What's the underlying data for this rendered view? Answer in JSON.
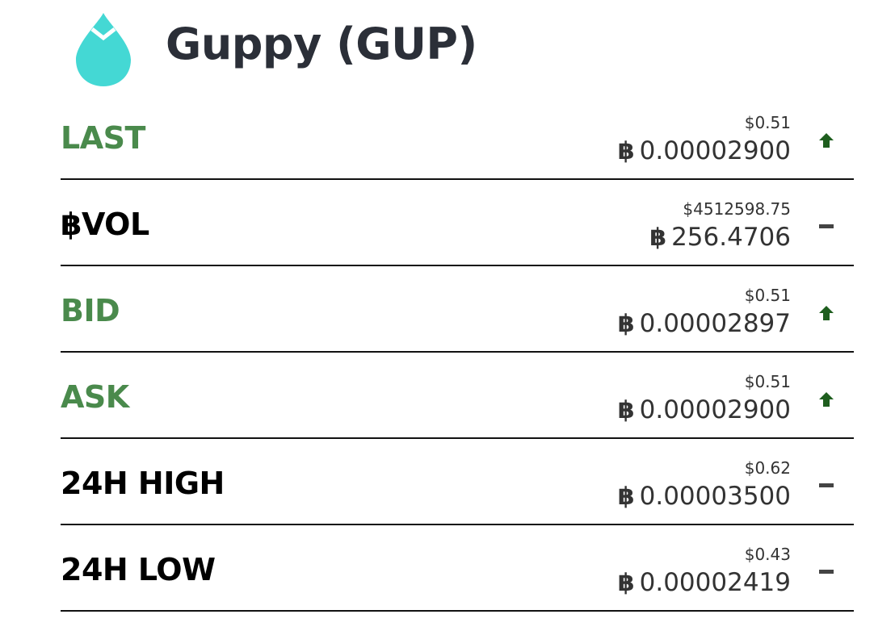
{
  "header": {
    "title": "Guppy (GUP)",
    "logo_icon": "water-drop-icon",
    "logo_color": "#44d8d4"
  },
  "colors": {
    "green_label": "#4a8a4c",
    "up_arrow": "#1e5e1e",
    "neutral_dash": "#444444",
    "text": "#333333"
  },
  "rows": [
    {
      "label": "LAST",
      "usd": "$0.51",
      "btc_symbol": "฿",
      "btc": "0.00002900",
      "indicator": "arrow-up-icon"
    },
    {
      "label": "฿VOL",
      "usd": "$4512598.75",
      "btc_symbol": "฿",
      "btc": "256.4706",
      "indicator": "dash-icon"
    },
    {
      "label": "BID",
      "usd": "$0.51",
      "btc_symbol": "฿",
      "btc": "0.00002897",
      "indicator": "arrow-up-icon"
    },
    {
      "label": "ASK",
      "usd": "$0.51",
      "btc_symbol": "฿",
      "btc": "0.00002900",
      "indicator": "arrow-up-icon"
    },
    {
      "label": "24H HIGH",
      "usd": "$0.62",
      "btc_symbol": "฿",
      "btc": "0.00003500",
      "indicator": "dash-icon"
    },
    {
      "label": "24H LOW",
      "usd": "$0.43",
      "btc_symbol": "฿",
      "btc": "0.00002419",
      "indicator": "dash-icon"
    }
  ]
}
